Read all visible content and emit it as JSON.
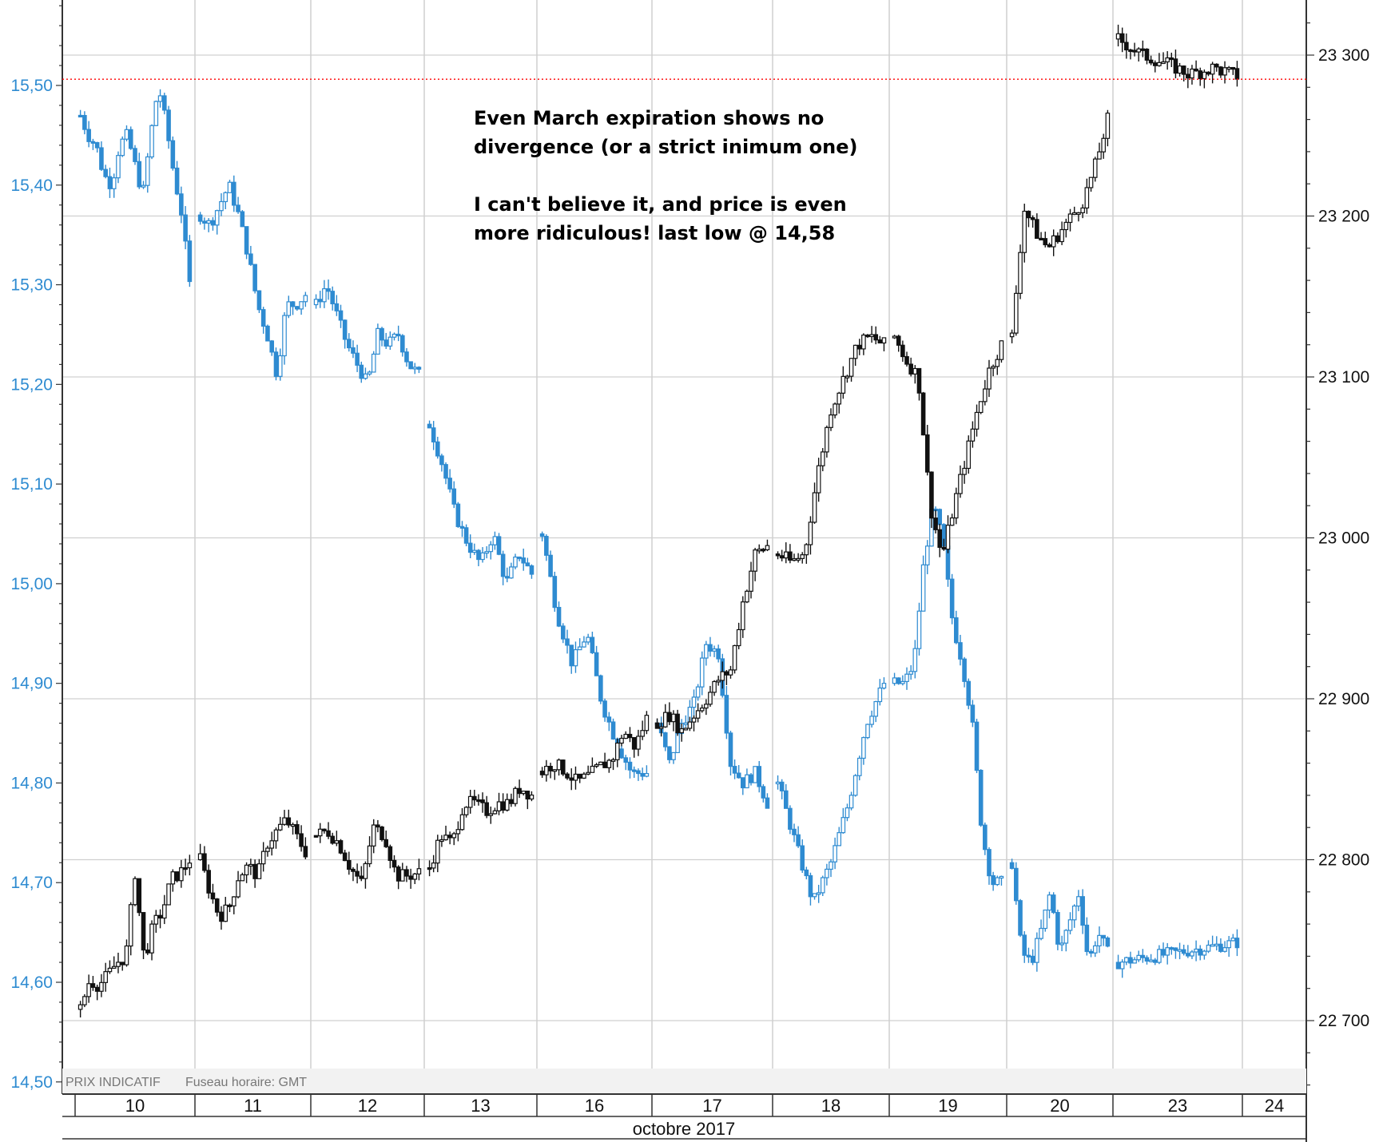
{
  "chart_data": {
    "type": "candlestick",
    "annotation": [
      "Even March expiration shows no divergence (or a strict inimum one)",
      "I can't believe it, and price is even more ridiculous!  last low @ 14,58"
    ],
    "footer": {
      "price_type": "PRIX INDICATIF",
      "timezone": "Fuseau horaire: GMT"
    },
    "month_label": "octobre 2017",
    "day_labels": [
      "10",
      "11",
      "12",
      "13",
      "16",
      "17",
      "18",
      "19",
      "20",
      "23",
      "24"
    ],
    "left_axis": {
      "ticks": [
        "15,50",
        "15,40",
        "15,30",
        "15,20",
        "15,10",
        "15,00",
        "14,90",
        "14,80",
        "14,70",
        "14,60",
        "14,50"
      ],
      "range": [
        14.5,
        15.58
      ],
      "color": "#2e8bd1"
    },
    "right_axis": {
      "ticks": [
        "23 300",
        "23 200",
        "23 100",
        "23 000",
        "22 900",
        "22 800",
        "22 700"
      ],
      "range": [
        22660,
        23330
      ],
      "color": "#111111"
    },
    "reference_line": {
      "value": 23285,
      "axis": "right",
      "color": "#ff0000",
      "style": "dotted"
    },
    "series": [
      {
        "name": "",
        "axis": "left",
        "color": "#2e8bd1",
        "style": "ohlc-bar",
        "days": [
          "10",
          "11",
          "12",
          "13",
          "16",
          "17",
          "18",
          "19",
          "20",
          "23"
        ],
        "close_path": [
          [
            15.47,
            15.45,
            15.44,
            15.41,
            15.4,
            15.44,
            15.45,
            15.42,
            15.39,
            15.45,
            15.5,
            15.46,
            15.41,
            15.37,
            15.3
          ],
          [
            15.37,
            15.36,
            15.38,
            15.4,
            15.37,
            15.33,
            15.28,
            15.25,
            15.21,
            15.28,
            15.28,
            15.29
          ],
          [
            15.28,
            15.3,
            15.27,
            15.24,
            15.22,
            15.2,
            15.25,
            15.24,
            15.25,
            15.22,
            15.21
          ],
          [
            15.16,
            15.12,
            15.07,
            15.04,
            15.02,
            15.05,
            15.0,
            15.03,
            15.01
          ],
          [
            15.05,
            14.97,
            14.92,
            14.95,
            14.88,
            14.84,
            14.81,
            14.81
          ],
          [
            14.86,
            14.82,
            14.86,
            14.88,
            14.94,
            14.93,
            14.82,
            14.8,
            14.81,
            14.78
          ],
          [
            14.8,
            14.74,
            14.68,
            14.72,
            14.78,
            14.86,
            14.9
          ],
          [
            14.9,
            14.9,
            14.92,
            15.02,
            15.08,
            15.04,
            14.96,
            14.92,
            14.86,
            14.75,
            14.7,
            14.7
          ],
          [
            14.72,
            14.63,
            14.62,
            14.65,
            14.69,
            14.63,
            14.66,
            14.69,
            14.62,
            14.65,
            14.63
          ],
          [
            14.62,
            14.63,
            14.64
          ]
        ]
      },
      {
        "name": "",
        "axis": "right",
        "color": "#111111",
        "style": "candlestick",
        "days": [
          "10",
          "11",
          "12",
          "13",
          "16",
          "17",
          "18",
          "19",
          "20",
          "23"
        ],
        "close_path": [
          [
            22707,
            22725,
            22722,
            22728,
            22736,
            22740,
            22792,
            22738,
            22759,
            22768,
            22788,
            22792,
            22800
          ],
          [
            22800,
            22780,
            22765,
            22770,
            22790,
            22796,
            22790,
            22810,
            22818,
            22825,
            22815,
            22805
          ],
          [
            22815,
            22818,
            22810,
            22795,
            22785,
            22820,
            22815,
            22790,
            22790,
            22792
          ],
          [
            22795,
            22815,
            22810,
            22835,
            22835,
            22830,
            22835,
            22835,
            22845,
            22840
          ],
          [
            22855,
            22860,
            22855,
            22848,
            22852,
            22858,
            22862,
            22880,
            22870,
            22888
          ],
          [
            22885,
            22890,
            22880,
            22890,
            22900,
            22912,
            22918,
            22960,
            22990,
            22995
          ],
          [
            22990,
            22985,
            22990,
            23040,
            23080,
            23100,
            23120,
            23125,
            23120
          ],
          [
            23125,
            23110,
            23100,
            23020,
            22988,
            23020,
            23050,
            23080,
            23105,
            23120
          ],
          [
            23125,
            23205,
            23190,
            23180,
            23190,
            23200,
            23210,
            23232,
            23260
          ],
          [
            23310,
            23300,
            23295,
            23288,
            23292,
            23287
          ]
        ]
      }
    ],
    "grid": true
  }
}
